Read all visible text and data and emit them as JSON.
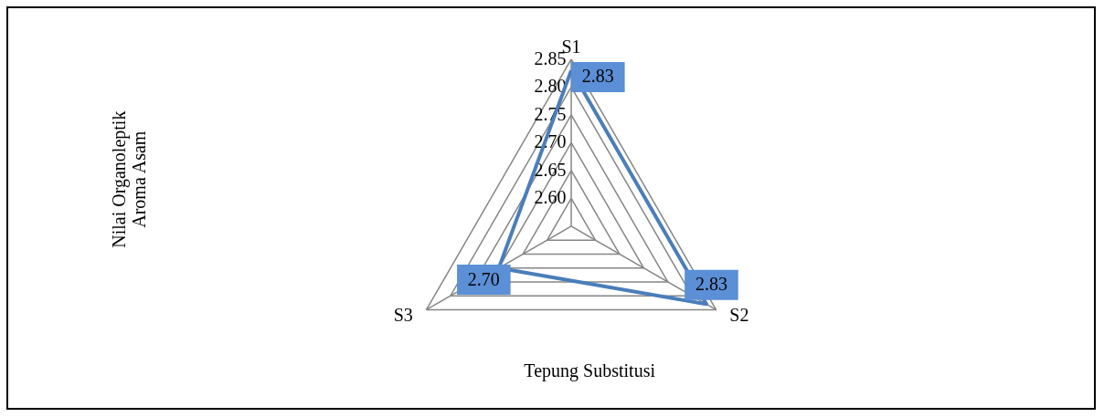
{
  "chart_data": {
    "type": "radar",
    "xlabel": "Tepung Substitusi",
    "ylabel": "Nilai Organoleptik Aroma Asam",
    "categories": [
      "S1",
      "S2",
      "S3"
    ],
    "series": [
      {
        "color": "#4a7ebb",
        "values": [
          2.83,
          2.83,
          2.7
        ],
        "value_labels": [
          "2.83",
          "2.83",
          "2.70"
        ]
      }
    ],
    "ylim": [
      2.55,
      2.85
    ],
    "yticks": [
      {
        "value": 2.6,
        "label": "2.60"
      },
      2.65,
      {
        "value": 2.7,
        "label": "2.70"
      },
      2.75,
      {
        "value": 2.8,
        "label": "2.80"
      },
      2.85
    ],
    "grid": true
  }
}
